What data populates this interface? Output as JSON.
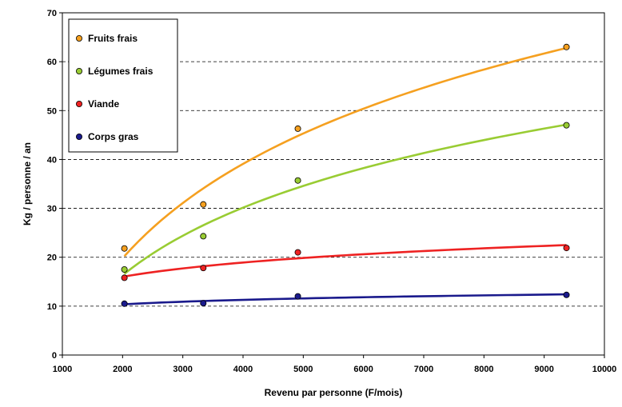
{
  "chart_data": {
    "type": "scatter",
    "xlabel": "Revenu par personne (F/mois)",
    "ylabel": "Kg / personne / an",
    "xlim": [
      1000,
      10000
    ],
    "ylim": [
      0,
      70
    ],
    "x_ticks": [
      "1000",
      "2000",
      "3000",
      "4000",
      "5000",
      "6000",
      "7000",
      "8000",
      "9000",
      "10000"
    ],
    "y_ticks": [
      "0",
      "10",
      "20",
      "30",
      "40",
      "50",
      "60",
      "70"
    ],
    "y_tick_values": [
      0,
      10,
      20,
      30,
      40,
      50,
      60,
      70
    ],
    "x_tick_values": [
      1000,
      2000,
      3000,
      4000,
      5000,
      6000,
      7000,
      8000,
      9000,
      10000
    ],
    "grid": "horizontal dashed",
    "legend_position": "top-left",
    "x": [
      2030,
      3340,
      4910,
      9370
    ],
    "series": [
      {
        "name": "Fruits frais",
        "values": [
          21.8,
          30.8,
          46.3,
          63.0
        ],
        "color": "#f5a020",
        "trendline": "logarithmic"
      },
      {
        "name": "Légumes frais",
        "values": [
          17.5,
          24.3,
          35.7,
          47.0
        ],
        "color": "#99cc33",
        "trendline": "logarithmic"
      },
      {
        "name": "Viande",
        "values": [
          15.8,
          17.8,
          21.0,
          21.9
        ],
        "color": "#ee2222",
        "trendline": "logarithmic"
      },
      {
        "name": "Corps gras",
        "values": [
          10.5,
          10.6,
          12.0,
          12.3
        ],
        "color": "#1a1a8c",
        "trendline": "logarithmic"
      }
    ]
  }
}
